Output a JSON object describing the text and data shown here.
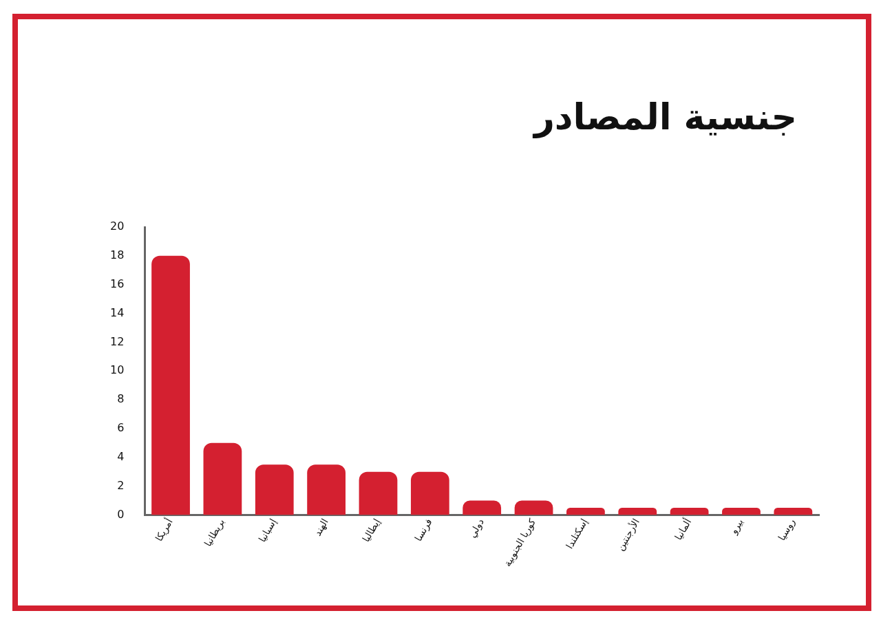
{
  "chart_data": {
    "type": "bar",
    "title": "جنسية المصادر",
    "categories": [
      "أمريكا",
      "بريطانيا",
      "إسبانيا",
      "الهند",
      "إيطاليا",
      "فرنسا",
      "دولي",
      "كوريا الجنوبية",
      "إسكتلندا",
      "الأرجنتين",
      "ألمانيا",
      "بيرو",
      "روسيا"
    ],
    "values": [
      18,
      5,
      3.5,
      3.5,
      3,
      3,
      1,
      1,
      0.5,
      0.5,
      0.5,
      0.5,
      0.5
    ],
    "color": "#d42030",
    "ylim": [
      0,
      20
    ],
    "yticks": [
      0,
      2,
      4,
      6,
      8,
      10,
      12,
      14,
      16,
      18,
      20
    ],
    "grid": false,
    "legend": false
  }
}
